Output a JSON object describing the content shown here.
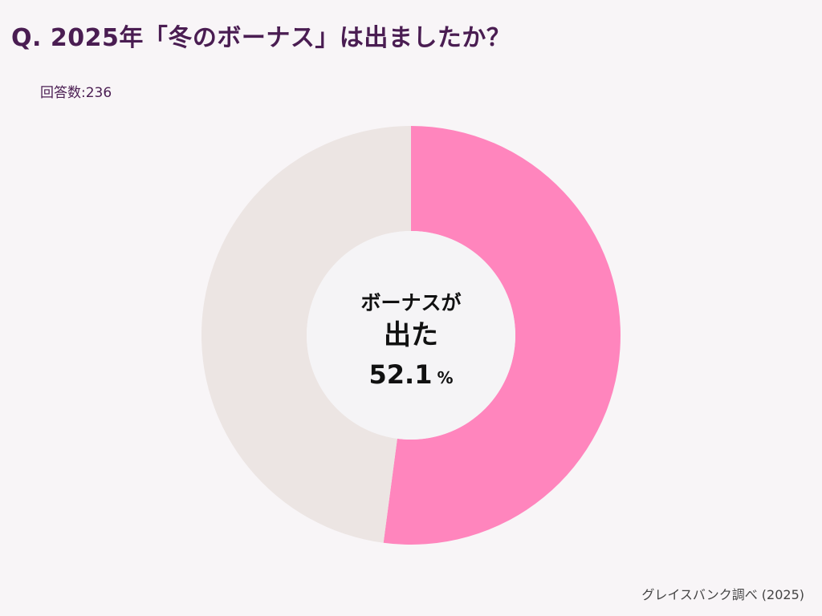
{
  "title": "Q. 2025年「冬のボーナス」は出ましたか？",
  "respondents": "回答数:236",
  "center": {
    "line1": "ボーナスが",
    "line2": "出た",
    "value": "52.1",
    "unit": "%"
  },
  "source": "グレイスバンク調べ (2025)",
  "chart_data": {
    "type": "pie",
    "donut": true,
    "title": "Q. 2025年「冬のボーナス」は出ましたか？",
    "total_responses": 236,
    "slices": [
      {
        "label": "ボーナスが出た",
        "value": 52.1,
        "color": "#ff85bd"
      },
      {
        "value": 47.9,
        "color": "#ece5e3"
      }
    ]
  }
}
